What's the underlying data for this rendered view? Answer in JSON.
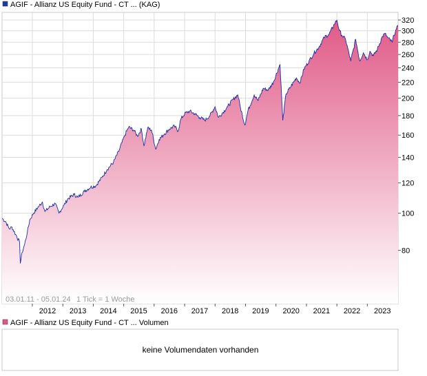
{
  "chart_data": {
    "type": "area",
    "title": "AGIF - Allianz US Equity Fund - CT ... (KAG)",
    "range_label": "03.01.11 - 05.01.24",
    "tick_label": "1 Tick = 1 Woche",
    "y_scale": "log",
    "ylim": [
      58,
      335
    ],
    "y_ticks": [
      80,
      100,
      120,
      140,
      160,
      180,
      200,
      220,
      240,
      260,
      280,
      300,
      320
    ],
    "x_ticks": [
      "2012",
      "2013",
      "2014",
      "2015",
      "2016",
      "2017",
      "2018",
      "2019",
      "2020",
      "2021",
      "2022",
      "2023"
    ],
    "grid": true,
    "colors": {
      "line": "#1a2fa8",
      "fill_top": "#e05a87",
      "fill_bottom": "#ffffff",
      "legend_price": "#1a3aa8",
      "legend_volume": "#e05a87"
    },
    "series": [
      {
        "name": "AGIF - Allianz US Equity Fund - CT ... (KAG)",
        "points": [
          [
            "2011-01-03",
            97
          ],
          [
            "2011-02-15",
            95
          ],
          [
            "2011-04-01",
            91
          ],
          [
            "2011-05-01",
            92
          ],
          [
            "2011-06-15",
            88
          ],
          [
            "2011-08-01",
            84
          ],
          [
            "2011-08-10",
            74
          ],
          [
            "2011-09-01",
            79
          ],
          [
            "2011-10-01",
            83
          ],
          [
            "2011-11-01",
            89
          ],
          [
            "2011-12-01",
            96
          ],
          [
            "2012-01-15",
            100
          ],
          [
            "2012-03-15",
            104
          ],
          [
            "2012-05-01",
            107
          ],
          [
            "2012-06-01",
            101
          ],
          [
            "2012-08-01",
            104
          ],
          [
            "2012-10-01",
            106
          ],
          [
            "2012-11-15",
            100
          ],
          [
            "2013-01-15",
            105
          ],
          [
            "2013-03-01",
            109
          ],
          [
            "2013-05-15",
            112
          ],
          [
            "2013-07-01",
            110
          ],
          [
            "2013-09-15",
            114
          ],
          [
            "2013-12-01",
            117
          ],
          [
            "2014-02-01",
            118
          ],
          [
            "2014-04-15",
            124
          ],
          [
            "2014-06-15",
            130
          ],
          [
            "2014-09-01",
            136
          ],
          [
            "2014-11-01",
            145
          ],
          [
            "2015-01-15",
            160
          ],
          [
            "2015-03-01",
            168
          ],
          [
            "2015-05-01",
            165
          ],
          [
            "2015-06-15",
            159
          ],
          [
            "2015-08-01",
            166
          ],
          [
            "2015-09-01",
            150
          ],
          [
            "2015-10-15",
            167
          ],
          [
            "2015-12-01",
            165
          ],
          [
            "2016-01-20",
            147
          ],
          [
            "2016-03-01",
            156
          ],
          [
            "2016-05-01",
            161
          ],
          [
            "2016-07-01",
            166
          ],
          [
            "2016-09-01",
            169
          ],
          [
            "2016-10-15",
            164
          ],
          [
            "2016-11-15",
            176
          ],
          [
            "2017-01-01",
            182
          ],
          [
            "2017-03-01",
            185
          ],
          [
            "2017-05-01",
            182
          ],
          [
            "2017-07-01",
            178
          ],
          [
            "2017-09-01",
            175
          ],
          [
            "2017-11-01",
            180
          ],
          [
            "2018-01-01",
            190
          ],
          [
            "2018-02-10",
            178
          ],
          [
            "2018-04-01",
            183
          ],
          [
            "2018-06-01",
            190
          ],
          [
            "2018-08-01",
            198
          ],
          [
            "2018-10-01",
            204
          ],
          [
            "2018-11-01",
            189
          ],
          [
            "2018-12-24",
            170
          ],
          [
            "2019-02-01",
            186
          ],
          [
            "2019-04-15",
            204
          ],
          [
            "2019-06-01",
            197
          ],
          [
            "2019-08-01",
            212
          ],
          [
            "2019-10-01",
            210
          ],
          [
            "2019-12-01",
            220
          ],
          [
            "2020-02-19",
            245
          ],
          [
            "2020-03-23",
            175
          ],
          [
            "2020-05-01",
            205
          ],
          [
            "2020-07-01",
            215
          ],
          [
            "2020-09-01",
            226
          ],
          [
            "2020-10-15",
            219
          ],
          [
            "2020-12-01",
            238
          ],
          [
            "2021-02-01",
            250
          ],
          [
            "2021-04-01",
            262
          ],
          [
            "2021-06-01",
            272
          ],
          [
            "2021-08-01",
            288
          ],
          [
            "2021-10-01",
            294
          ],
          [
            "2021-12-01",
            312
          ],
          [
            "2022-01-01",
            320
          ],
          [
            "2022-02-01",
            300
          ],
          [
            "2022-03-01",
            292
          ],
          [
            "2022-04-15",
            285
          ],
          [
            "2022-06-16",
            250
          ],
          [
            "2022-08-15",
            285
          ],
          [
            "2022-10-01",
            250
          ],
          [
            "2022-11-15",
            263
          ],
          [
            "2023-01-01",
            252
          ],
          [
            "2023-02-01",
            265
          ],
          [
            "2023-03-15",
            258
          ],
          [
            "2023-05-01",
            268
          ],
          [
            "2023-07-01",
            290
          ],
          [
            "2023-08-01",
            295
          ],
          [
            "2023-09-01",
            288
          ],
          [
            "2023-10-27",
            280
          ],
          [
            "2023-11-15",
            292
          ],
          [
            "2023-12-15",
            303
          ],
          [
            "2024-01-05",
            308
          ]
        ]
      }
    ]
  },
  "volume_panel": {
    "legend": "AGIF - Allianz US Equity Fund - CT ... Volumen",
    "message": "keine Volumendaten vorhanden"
  }
}
